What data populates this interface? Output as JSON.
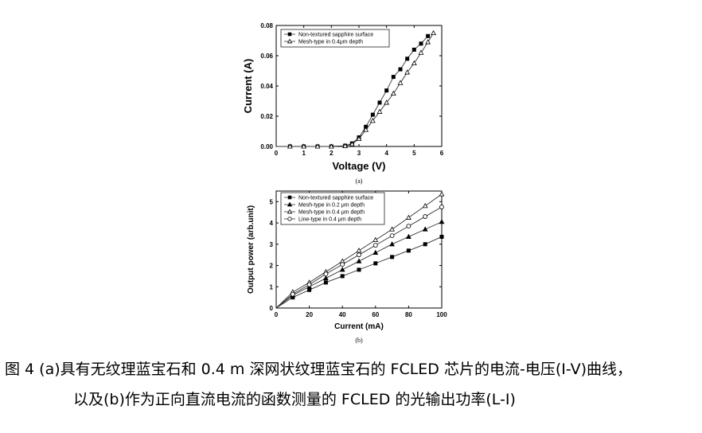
{
  "chart_data": [
    {
      "type": "line",
      "panel_label": "(a)",
      "xlabel": "Voltage (V)",
      "ylabel": "Current (A)",
      "xlim": [
        0,
        6
      ],
      "ylim": [
        0,
        0.08
      ],
      "xticks": [
        0,
        1,
        2,
        3,
        4,
        5,
        6
      ],
      "yticks": [
        0.0,
        0.02,
        0.04,
        0.06,
        0.08
      ],
      "ytick_labels": [
        "0.00",
        "0.02",
        "0.04",
        "0.06",
        "0.08"
      ],
      "legend_position": "top-left",
      "series": [
        {
          "name": "Non-textured sapphire surface",
          "marker": "square-filled",
          "x": [
            0,
            0.5,
            1.0,
            1.5,
            2.0,
            2.5,
            2.75,
            3.0,
            3.25,
            3.5,
            3.75,
            4.0,
            4.25,
            4.5,
            4.75,
            5.0,
            5.25,
            5.5
          ],
          "y": [
            0,
            0,
            0,
            0,
            0,
            0.0005,
            0.002,
            0.006,
            0.013,
            0.021,
            0.029,
            0.037,
            0.046,
            0.051,
            0.058,
            0.064,
            0.068,
            0.073
          ]
        },
        {
          "name": "Mesh-type in 0.4μm depth",
          "marker": "triangle-open",
          "x": [
            0,
            0.5,
            1.0,
            1.5,
            2.0,
            2.5,
            2.75,
            3.0,
            3.25,
            3.5,
            3.75,
            4.0,
            4.25,
            4.5,
            4.75,
            5.0,
            5.25,
            5.5,
            5.7
          ],
          "y": [
            0,
            0,
            0,
            0,
            0,
            0.0003,
            0.0015,
            0.005,
            0.011,
            0.017,
            0.023,
            0.029,
            0.035,
            0.042,
            0.049,
            0.055,
            0.062,
            0.069,
            0.075
          ]
        }
      ]
    },
    {
      "type": "line",
      "panel_label": "(b)",
      "xlabel": "Current (mA)",
      "ylabel": "Output power (arb.unit)",
      "xlim": [
        0,
        100
      ],
      "ylim": [
        0,
        5.5
      ],
      "xticks": [
        0,
        20,
        40,
        60,
        80,
        100
      ],
      "yticks": [
        0,
        1,
        2,
        3,
        4,
        5
      ],
      "legend_position": "top-left",
      "series": [
        {
          "name": "Non-textured sapphire surface",
          "marker": "square-filled",
          "x": [
            0,
            10,
            20,
            30,
            40,
            50,
            60,
            70,
            80,
            90,
            100
          ],
          "y": [
            0,
            0.5,
            0.85,
            1.2,
            1.5,
            1.8,
            2.1,
            2.4,
            2.7,
            3.0,
            3.35
          ]
        },
        {
          "name": "Mesh-type in 0.2 μm depth",
          "marker": "triangle-filled",
          "x": [
            0,
            10,
            20,
            30,
            40,
            50,
            60,
            70,
            80,
            90,
            100
          ],
          "y": [
            0,
            0.6,
            1.0,
            1.4,
            1.8,
            2.2,
            2.6,
            3.0,
            3.35,
            3.7,
            4.05
          ]
        },
        {
          "name": "Mesh-type in 0.4 μm depth",
          "marker": "triangle-open",
          "x": [
            0,
            10,
            20,
            30,
            40,
            50,
            60,
            70,
            80,
            90,
            100
          ],
          "y": [
            0,
            0.75,
            1.2,
            1.7,
            2.2,
            2.7,
            3.2,
            3.7,
            4.25,
            4.8,
            5.35
          ]
        },
        {
          "name": "Line-type in 0.4 μm depth",
          "marker": "circle-open",
          "x": [
            0,
            10,
            20,
            30,
            40,
            50,
            60,
            70,
            80,
            90,
            100
          ],
          "y": [
            0,
            0.65,
            1.1,
            1.6,
            2.05,
            2.5,
            2.95,
            3.4,
            3.85,
            4.3,
            4.75
          ]
        }
      ]
    }
  ],
  "captions": {
    "line1": "图 4 (a)具有无纹理蓝宝石和 0.4 m 深网状纹理蓝宝石的 FCLED 芯片的电流-电压(I-V)曲线，",
    "line2": "以及(b)作为正向直流电流的函数测量的 FCLED 的光输出功率(L-I)"
  }
}
